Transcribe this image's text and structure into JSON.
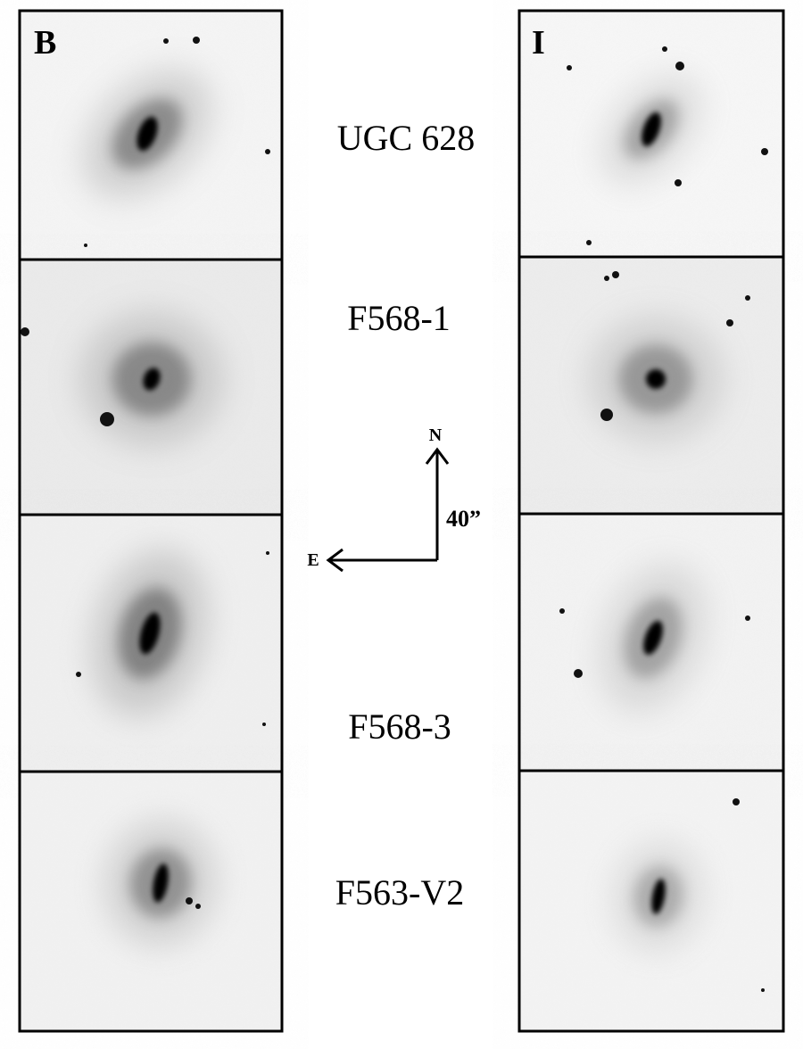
{
  "panels": {
    "left": {
      "label": "B"
    },
    "right": {
      "label": "I"
    }
  },
  "galaxies": [
    "UGC 628",
    "F568-1",
    "F568-3",
    "F563-V2"
  ],
  "compass": {
    "north": "N",
    "east": "E",
    "scale": "40”"
  }
}
